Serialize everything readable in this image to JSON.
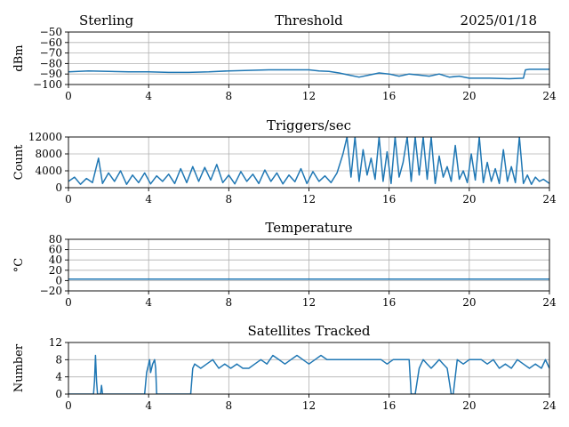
{
  "header": {
    "station": "Sterling",
    "date": "2025/01/18"
  },
  "colors": {
    "series": "#1f77b4",
    "grid": "#b0b0b0",
    "axis": "#000000",
    "background": "#ffffff"
  },
  "chart_data": [
    {
      "type": "line",
      "title": "Threshold",
      "xlabel": "",
      "ylabel": "dBm",
      "xlim": [
        0,
        24
      ],
      "ylim": [
        -100,
        -50
      ],
      "xticks": [
        "0",
        "4",
        "8",
        "12",
        "16",
        "20",
        "24"
      ],
      "yticks": [
        "−50",
        "−60",
        "−70",
        "−80",
        "−90",
        "−100"
      ],
      "yticks_values": [
        -50,
        -60,
        -70,
        -80,
        -90,
        -100
      ],
      "grid": true,
      "series": [
        {
          "x": [
            0,
            1,
            2,
            3,
            4,
            5,
            6,
            7,
            8,
            9,
            10,
            11,
            12,
            12.5,
            13,
            13.5,
            14,
            14.5,
            15,
            15.5,
            16,
            16.5,
            17,
            17.5,
            18,
            18.5,
            19,
            19.5,
            20,
            21,
            22,
            22.7,
            22.8,
            23,
            24
          ],
          "y": [
            -88,
            -87,
            -87.5,
            -88,
            -88,
            -88.5,
            -88.5,
            -88,
            -87,
            -86.5,
            -86,
            -86,
            -86,
            -87,
            -87.5,
            -89,
            -91,
            -93,
            -91,
            -89,
            -90,
            -92,
            -90,
            -91,
            -92,
            -90,
            -93,
            -92,
            -94,
            -94,
            -94.5,
            -94,
            -86,
            -85.5,
            -85.5
          ]
        }
      ]
    },
    {
      "type": "line",
      "title": "Triggers/sec",
      "xlabel": "",
      "ylabel": "Count",
      "xlim": [
        0,
        24
      ],
      "ylim": [
        0,
        12000
      ],
      "xticks": [
        "0",
        "4",
        "8",
        "12",
        "16",
        "20",
        "24"
      ],
      "yticks": [
        "0",
        "4000",
        "8000",
        "12000"
      ],
      "yticks_values": [
        0,
        4000,
        8000,
        12000
      ],
      "grid": true,
      "series": [
        {
          "x": [
            0,
            0.3,
            0.6,
            0.9,
            1.2,
            1.5,
            1.7,
            2.0,
            2.3,
            2.6,
            2.9,
            3.2,
            3.5,
            3.8,
            4.1,
            4.4,
            4.7,
            5.0,
            5.3,
            5.6,
            5.9,
            6.2,
            6.5,
            6.8,
            7.1,
            7.4,
            7.7,
            8.0,
            8.3,
            8.6,
            8.9,
            9.2,
            9.5,
            9.8,
            10.1,
            10.4,
            10.7,
            11.0,
            11.3,
            11.6,
            11.9,
            12.2,
            12.5,
            12.8,
            13.1,
            13.4,
            13.7,
            13.9,
            14.1,
            14.3,
            14.5,
            14.7,
            14.9,
            15.1,
            15.3,
            15.5,
            15.7,
            15.9,
            16.1,
            16.3,
            16.5,
            16.7,
            16.9,
            17.1,
            17.3,
            17.5,
            17.7,
            17.9,
            18.1,
            18.3,
            18.5,
            18.7,
            18.9,
            19.1,
            19.3,
            19.5,
            19.7,
            19.9,
            20.1,
            20.3,
            20.5,
            20.7,
            20.9,
            21.1,
            21.3,
            21.5,
            21.7,
            21.9,
            22.1,
            22.3,
            22.5,
            22.7,
            22.9,
            23.1,
            23.3,
            23.5,
            23.7,
            24
          ],
          "y": [
            1500,
            2500,
            800,
            2200,
            1200,
            7000,
            1000,
            3500,
            1500,
            4000,
            800,
            3000,
            1200,
            3500,
            900,
            2800,
            1500,
            3200,
            1000,
            4500,
            1200,
            5000,
            1500,
            4800,
            1800,
            5500,
            1200,
            3000,
            900,
            3800,
            1500,
            3200,
            1000,
            4200,
            1500,
            3500,
            900,
            3000,
            1400,
            4500,
            1000,
            3800,
            1500,
            2800,
            1200,
            3500,
            8000,
            12000,
            2500,
            12000,
            1500,
            9000,
            3000,
            7000,
            2000,
            12000,
            1500,
            8500,
            1000,
            12000,
            2500,
            6000,
            12000,
            1500,
            12000,
            3000,
            12000,
            2000,
            12000,
            1000,
            7500,
            2500,
            5000,
            1500,
            10000,
            2000,
            4000,
            1200,
            8000,
            1800,
            12000,
            1200,
            6000,
            1500,
            4500,
            1000,
            9000,
            1500,
            5000,
            1200,
            12000,
            1000,
            3000,
            800,
            2500,
            1500,
            2000,
            1000
          ]
        }
      ]
    },
    {
      "type": "line",
      "title": "Temperature",
      "xlabel": "",
      "ylabel": "°C",
      "xlim": [
        0,
        24
      ],
      "ylim": [
        -20,
        80
      ],
      "xticks": [
        "0",
        "4",
        "8",
        "12",
        "16",
        "20",
        "24"
      ],
      "yticks": [
        "−20",
        "0",
        "20",
        "40",
        "60",
        "80"
      ],
      "yticks_values": [
        -20,
        0,
        20,
        40,
        60,
        80
      ],
      "grid": true,
      "series": [
        {
          "x": [
            0,
            24
          ],
          "y": [
            3,
            3
          ]
        }
      ]
    },
    {
      "type": "line",
      "title": "Satellites Tracked",
      "xlabel": "",
      "ylabel": "Number",
      "xlim": [
        0,
        24
      ],
      "ylim": [
        0,
        12
      ],
      "xticks": [
        "0",
        "4",
        "8",
        "12",
        "16",
        "20",
        "24"
      ],
      "yticks": [
        "0",
        "4",
        "8",
        "12"
      ],
      "yticks_values": [
        0,
        4,
        8,
        12
      ],
      "grid": true,
      "series": [
        {
          "x": [
            0,
            1.25,
            1.3,
            1.35,
            1.4,
            1.45,
            1.5,
            1.6,
            1.65,
            1.7,
            3.8,
            3.9,
            4.0,
            4.05,
            4.1,
            4.2,
            4.3,
            4.35,
            4.4,
            6.1,
            6.2,
            6.3,
            6.6,
            6.9,
            7.2,
            7.5,
            7.8,
            8.1,
            8.4,
            8.7,
            9.0,
            9.3,
            9.6,
            9.9,
            10.2,
            10.5,
            10.8,
            11.1,
            11.4,
            11.7,
            12.0,
            12.3,
            12.6,
            12.9,
            13.2,
            13.5,
            13.8,
            14.1,
            14.4,
            14.7,
            15.0,
            15.3,
            15.6,
            15.9,
            16.2,
            16.5,
            16.8,
            17.0,
            17.1,
            17.2,
            17.3,
            17.5,
            17.6,
            17.7,
            17.9,
            18.1,
            18.3,
            18.5,
            18.7,
            18.9,
            19.0,
            19.1,
            19.2,
            19.4,
            19.7,
            20.0,
            20.3,
            20.6,
            20.9,
            21.2,
            21.5,
            21.8,
            22.1,
            22.4,
            22.7,
            23.0,
            23.3,
            23.6,
            23.8,
            24
          ],
          "y": [
            0,
            0,
            3,
            9,
            3,
            0,
            0,
            0,
            2,
            0,
            0,
            5,
            7,
            8,
            5,
            7,
            8,
            6,
            0,
            0,
            6,
            7,
            6,
            7,
            8,
            6,
            7,
            6,
            7,
            6,
            6,
            7,
            8,
            7,
            9,
            8,
            7,
            8,
            9,
            8,
            7,
            8,
            9,
            8,
            8,
            8,
            8,
            8,
            8,
            8,
            8,
            8,
            8,
            7,
            8,
            8,
            8,
            8,
            0,
            0,
            0,
            6,
            7,
            8,
            7,
            6,
            7,
            8,
            7,
            6,
            3,
            0,
            0,
            8,
            7,
            8,
            8,
            8,
            7,
            8,
            6,
            7,
            6,
            8,
            7,
            6,
            7,
            6,
            8,
            6
          ]
        }
      ]
    }
  ]
}
